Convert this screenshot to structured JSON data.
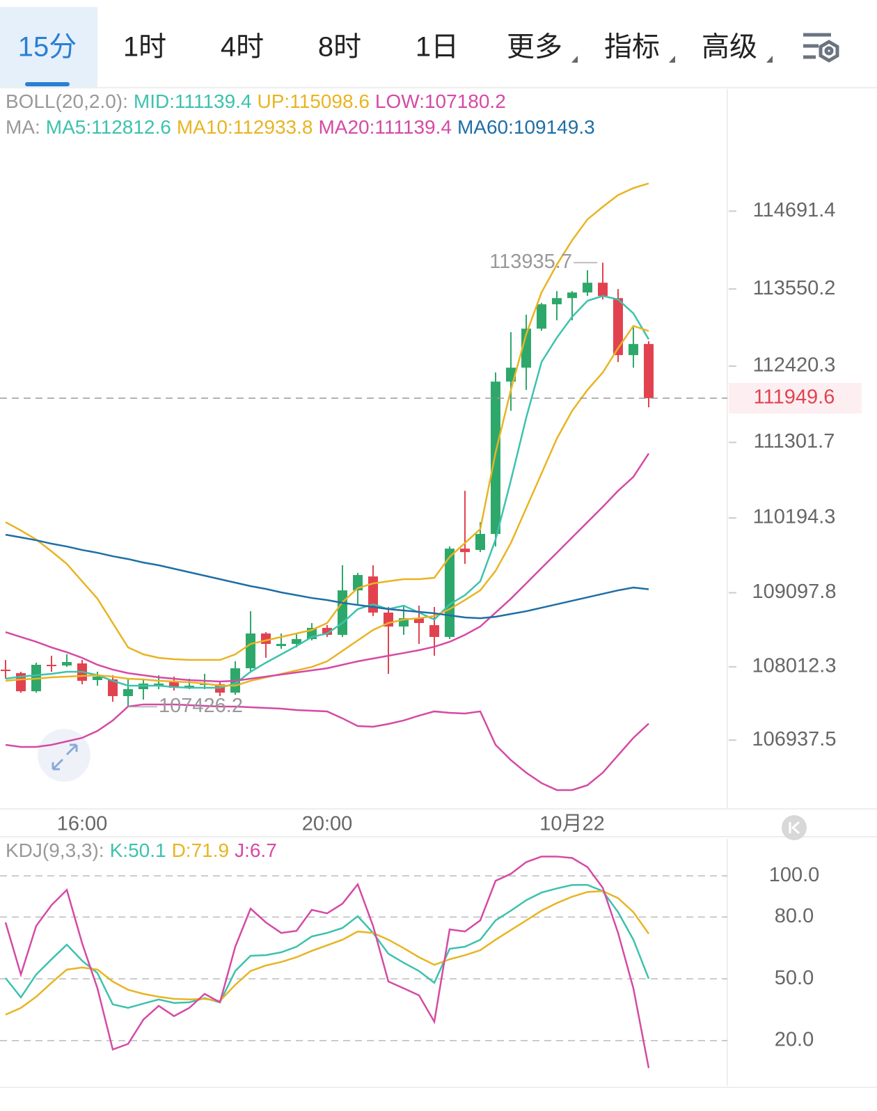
{
  "tabs": [
    {
      "label": "15分"
    },
    {
      "label": "1时"
    },
    {
      "label": "4时"
    },
    {
      "label": "8时"
    },
    {
      "label": "1日"
    },
    {
      "label": "更多",
      "dropdown": true
    },
    {
      "label": "指标",
      "dropdown": true
    },
    {
      "label": "高级",
      "dropdown": true
    }
  ],
  "active_tab": 0,
  "chart_data": [
    {
      "type": "candlestick",
      "up_color": "#2ea86a",
      "down_color": "#e2424f",
      "ylim": [
        105930,
        116480
      ],
      "yticks": [
        114691.4,
        113550.2,
        112420.3,
        111301.7,
        110194.3,
        109097.8,
        108012.3,
        106937.5
      ],
      "categories": [
        null,
        null,
        null,
        null,
        null,
        "16:00",
        null,
        null,
        null,
        null,
        null,
        null,
        null,
        null,
        null,
        null,
        null,
        null,
        null,
        null,
        null,
        "20:00",
        null,
        null,
        null,
        null,
        null,
        null,
        null,
        null,
        null,
        null,
        null,
        null,
        null,
        null,
        null,
        "10月22",
        null,
        null,
        null,
        null,
        null
      ],
      "ohlc": [
        [
          107971,
          108113,
          107838,
          107950
        ],
        [
          107920,
          107940,
          107634,
          107654
        ],
        [
          107654,
          108073,
          107634,
          108042
        ],
        [
          108042,
          108175,
          107940,
          108022
        ],
        [
          108032,
          108195,
          108011,
          108083
        ],
        [
          108062,
          108113,
          107756,
          107807
        ],
        [
          107818,
          107940,
          107736,
          107869
        ],
        [
          107828,
          107889,
          107501,
          107583
        ],
        [
          107583,
          107838,
          107426.2,
          107685
        ],
        [
          107685,
          107838,
          107532,
          107767
        ],
        [
          107736,
          107889,
          107685,
          107767
        ],
        [
          107787,
          107869,
          107665,
          107705
        ],
        [
          107705,
          107838,
          107685,
          107736
        ],
        [
          107746,
          107909,
          107685,
          107767
        ],
        [
          107756,
          107787,
          107583,
          107634
        ],
        [
          107634,
          108093,
          107603,
          107991
        ],
        [
          107991,
          108827,
          107940,
          108501
        ],
        [
          108501,
          108521,
          108144,
          108348
        ],
        [
          108317,
          108501,
          108277,
          108348
        ],
        [
          108348,
          108501,
          108297,
          108419
        ],
        [
          108419,
          108654,
          108399,
          108583
        ],
        [
          108583,
          108623,
          108450,
          108481
        ],
        [
          108481,
          109501,
          108450,
          109133
        ],
        [
          109133,
          109388,
          108909,
          109358
        ],
        [
          109337,
          109501,
          108756,
          108807
        ],
        [
          108807,
          108889,
          107909,
          108603
        ],
        [
          108603,
          108909,
          108481,
          108725
        ],
        [
          108725,
          108909,
          108348,
          108654
        ],
        [
          108623,
          108889,
          108175,
          108450
        ],
        [
          108450,
          109776,
          108419,
          109745
        ],
        [
          109745,
          110592,
          109521,
          109694
        ],
        [
          109725,
          110133,
          109694,
          109960
        ],
        [
          109960,
          112326,
          109776,
          112193
        ],
        [
          112193,
          112918,
          111765,
          112397
        ],
        [
          112397,
          113173,
          112071,
          112969
        ],
        [
          112969,
          113346,
          112938,
          113326
        ],
        [
          113326,
          113519,
          113091,
          113417
        ],
        [
          113417,
          113519,
          113091,
          113499
        ],
        [
          113499,
          113825,
          113448,
          113642
        ],
        [
          113642,
          113935.7,
          113397,
          113448
        ],
        [
          113417,
          113550,
          112479,
          112581
        ],
        [
          112581,
          112989,
          112397,
          112744
        ],
        [
          112744,
          112785,
          111816,
          111949.6
        ]
      ],
      "last_price": 111949.6,
      "high_mark": 113935.7,
      "low_mark": 107426.2,
      "legends": [
        {
          "title": "BOLL(20,2.0):",
          "series": [
            {
              "label": "MID:111139.4",
              "color": "#3cc2ad"
            },
            {
              "label": "UP:115098.6",
              "color": "#e9b422",
              "values": [
                110133,
                110011,
                109878,
                109705,
                109521,
                109266,
                109011,
                108654,
                108297,
                108195,
                108144,
                108124,
                108113,
                108113,
                108113,
                108195,
                108348,
                108399,
                108450,
                108501,
                108552,
                108654,
                108960,
                109164,
                109235,
                109266,
                109297,
                109297,
                109317,
                109623,
                109827,
                110031,
                111153,
                112071,
                112887,
                113499,
                113907,
                114264,
                114570,
                114754,
                114927,
                115029,
                115098.6
              ]
            },
            {
              "label": "LOW:107180.2",
              "color": "#d54aa4",
              "values": [
                106869,
                106838,
                106838,
                106869,
                106920,
                106971,
                107073,
                107226,
                107430,
                107461,
                107461,
                107461,
                107450,
                107440,
                107430,
                107430,
                107420,
                107409,
                107399,
                107379,
                107369,
                107359,
                107257,
                107144,
                107134,
                107175,
                107226,
                107297,
                107359,
                107338,
                107328,
                107359,
                106869,
                106645,
                106461,
                106308,
                106206,
                106206,
                106277,
                106461,
                106716,
                106971,
                107180.2
              ]
            }
          ]
        },
        {
          "title": "MA:",
          "series": [
            {
              "label": "MA5:112812.6",
              "color": "#3cc2ad",
              "values": [
                107838,
                107869,
                107889,
                107909,
                107940,
                107940,
                107889,
                107807,
                107736,
                107736,
                107736,
                107716,
                107705,
                107705,
                107705,
                107767,
                107940,
                108073,
                108195,
                108317,
                108450,
                108501,
                108654,
                108858,
                108929,
                108858,
                108909,
                108807,
                108705,
                108929,
                109062,
                109266,
                109878,
                110745,
                111663,
                112479,
                112836,
                113142,
                113377,
                113448,
                113397,
                113193,
                112812.6
              ]
            },
            {
              "label": "MA10:112933.8",
              "color": "#e9b422",
              "values": [
                107807,
                107828,
                107838,
                107858,
                107869,
                107879,
                107889,
                107869,
                107838,
                107828,
                107807,
                107797,
                107787,
                107767,
                107736,
                107736,
                107807,
                107858,
                107909,
                107960,
                108011,
                108093,
                108246,
                108399,
                108552,
                108654,
                108705,
                108725,
                108756,
                108858,
                108991,
                109133,
                109419,
                109827,
                110337,
                110847,
                111357,
                111765,
                112071,
                112326,
                112683,
                113009,
                112933.8
              ]
            },
            {
              "label": "MA20:111139.4",
              "color": "#d54aa4",
              "values": [
                108521,
                108450,
                108379,
                108297,
                108226,
                108144,
                108042,
                107971,
                107920,
                107889,
                107858,
                107838,
                107818,
                107807,
                107797,
                107807,
                107838,
                107869,
                107899,
                107930,
                107960,
                107991,
                108042,
                108093,
                108134,
                108175,
                108215,
                108256,
                108307,
                108379,
                108481,
                108603,
                108807,
                109011,
                109235,
                109460,
                109684,
                109909,
                110133,
                110357,
                110592,
                110796,
                111139.4
              ]
            },
            {
              "label": "MA60:109149.3",
              "color": "#1e6ea6",
              "values": [
                109949,
                109909,
                109868,
                109817,
                109776,
                109725,
                109684,
                109633,
                109592,
                109541,
                109501,
                109450,
                109399,
                109348,
                109297,
                109246,
                109195,
                109154,
                109103,
                109062,
                109021,
                108991,
                108950,
                108919,
                108889,
                108858,
                108838,
                108817,
                108797,
                108766,
                108736,
                108725,
                108746,
                108787,
                108827,
                108878,
                108929,
                108980,
                109031,
                109082,
                109133,
                109174,
                109149.3
              ]
            }
          ]
        }
      ]
    },
    {
      "type": "line",
      "ylim": [
        -2,
        118
      ],
      "yticks": [
        {
          "value": 100,
          "label": "100.0"
        },
        {
          "value": 80,
          "label": "80.0"
        },
        {
          "value": 50,
          "label": "50.0"
        },
        {
          "value": 20,
          "label": "20.0"
        }
      ],
      "legends": [
        {
          "title": "KDJ(9,3,3):",
          "series": [
            {
              "label": "K:50.1",
              "color": "#3cc2ad",
              "values": [
                50.4,
                41.0,
                52.1,
                59.5,
                66.6,
                58.8,
                52.8,
                37.6,
                35.9,
                38.0,
                40.0,
                38.3,
                38.6,
                40.6,
                38.6,
                53.8,
                61.2,
                61.5,
                62.9,
                65.6,
                70.6,
                72.3,
                74.7,
                80.4,
                72.3,
                62.2,
                57.8,
                53.8,
                48.1,
                64.6,
                65.6,
                69.0,
                78.4,
                83.1,
                88.2,
                91.9,
                93.9,
                95.6,
                95.6,
                92.6,
                82.4,
                69.0,
                50.1
              ]
            },
            {
              "label": "D:71.9",
              "color": "#e9b422",
              "values": [
                32.6,
                35.9,
                41.3,
                48.1,
                54.5,
                55.5,
                54.5,
                48.7,
                44.7,
                42.7,
                41.3,
                40.3,
                40.0,
                40.3,
                39.3,
                47.1,
                53.8,
                56.5,
                58.2,
                60.5,
                63.6,
                66.3,
                69.0,
                73.0,
                72.3,
                69.0,
                64.9,
                60.5,
                56.8,
                59.5,
                61.5,
                63.9,
                69.0,
                73.7,
                78.4,
                83.1,
                86.8,
                89.9,
                92.2,
                92.6,
                89.2,
                82.4,
                71.9
              ]
            },
            {
              "label": "J:6.7",
              "color": "#d54aa4",
              "values": [
                77.4,
                52.1,
                75.7,
                85.8,
                93.2,
                67.3,
                45.4,
                15.7,
                18.4,
                30.2,
                36.9,
                31.9,
                35.9,
                42.7,
                38.6,
                65.6,
                84.1,
                77.4,
                72.3,
                73.3,
                83.5,
                81.8,
                86.5,
                95.9,
                75.7,
                48.7,
                45.4,
                42.0,
                29.2,
                74.0,
                73.0,
                78.4,
                97.6,
                101.0,
                106.7,
                109.4,
                109.4,
                108.7,
                104.3,
                94.2,
                72.3,
                45.4,
                6.7
              ]
            }
          ]
        }
      ]
    }
  ]
}
